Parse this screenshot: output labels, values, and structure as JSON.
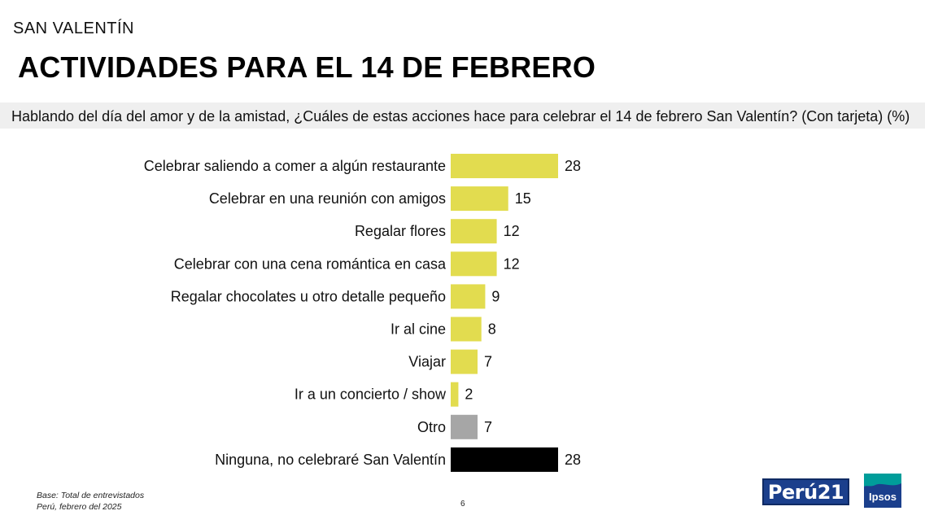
{
  "header": {
    "kicker": "SAN VALENTÍN",
    "title": "ACTIVIDADES PARA EL 14 DE FEBRERO",
    "question": "Hablando del día del amor y de la amistad, ¿Cuáles de estas acciones hace para celebrar el 14 de febrero San Valentín? (Con tarjeta) (%)"
  },
  "chart_data": {
    "type": "bar",
    "orientation": "horizontal",
    "categories": [
      "Celebrar saliendo a comer a algún restaurante",
      "Celebrar en una reunión con amigos",
      "Regalar flores",
      "Celebrar con una cena romántica en casa",
      "Regalar chocolates u otro detalle pequeño",
      "Ir al cine",
      "Viajar",
      "Ir a un concierto / show",
      "Otro",
      "Ninguna, no celebraré San Valentín"
    ],
    "values": [
      28,
      15,
      12,
      12,
      9,
      8,
      7,
      2,
      7,
      28
    ],
    "bar_colors": [
      "#e2dc4f",
      "#e2dc4f",
      "#e2dc4f",
      "#e2dc4f",
      "#e2dc4f",
      "#e2dc4f",
      "#e2dc4f",
      "#e2dc4f",
      "#a6a6a6",
      "#000000"
    ],
    "xlim": [
      0,
      28
    ],
    "grid": false,
    "legend": "none"
  },
  "footer": {
    "base": "Base: Total de entrevistados",
    "source": "Perú, febrero del 2025",
    "page": "6",
    "logo_peru21": "Perú21",
    "logo_ipsos": "Ipsos"
  },
  "colors": {
    "accent_bar": "#e2dc4f",
    "other_bar": "#a6a6a6",
    "none_bar": "#000000",
    "question_band": "#efefef",
    "peru21_blue": "#1b3f8c",
    "ipsos_teal": "#009d9a"
  }
}
